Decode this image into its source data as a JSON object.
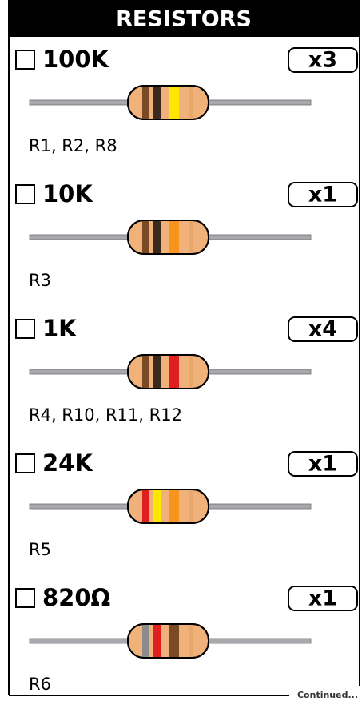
{
  "header": {
    "title": "RESISTORS"
  },
  "items": [
    {
      "value": "100K",
      "qty": "x3",
      "refs": "R1, R2, R8",
      "bands": [
        "#7a4a25",
        "#3a2a1e",
        "#ffe600",
        "#e8a86a"
      ]
    },
    {
      "value": "10K",
      "qty": "x1",
      "refs": "R3",
      "bands": [
        "#7a4a25",
        "#3a2a1e",
        "#f7941d",
        "#e8a86a"
      ]
    },
    {
      "value": "1K",
      "qty": "x4",
      "refs": "R4, R10, R11, R12",
      "bands": [
        "#7a4a25",
        "#3a2a1e",
        "#e02020",
        "#e8a86a"
      ]
    },
    {
      "value": "24K",
      "qty": "x1",
      "refs": "R5",
      "bands": [
        "#e02020",
        "#ffe600",
        "#f7941d",
        "#e8a86a"
      ]
    },
    {
      "value": "820Ω",
      "qty": "x1",
      "refs": "R6",
      "bands": [
        "#8c8c8c",
        "#e02020",
        "#7a4a25",
        "#e8a86a"
      ]
    }
  ],
  "footer": {
    "note": "Continued..."
  }
}
